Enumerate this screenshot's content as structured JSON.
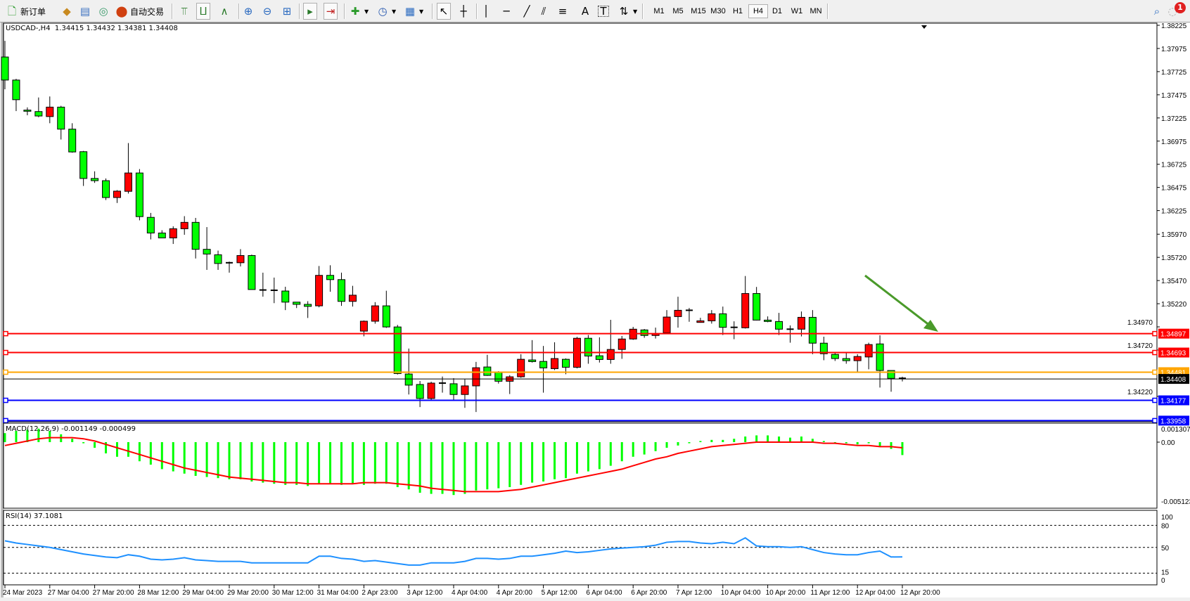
{
  "toolbar": {
    "new_order_label": "新订单",
    "auto_trading_label": "自动交易",
    "icons": [
      "new-order-icon",
      "market-watch-icon",
      "navigator-icon",
      "signals-icon",
      "auto-trading-icon",
      "bar-chart-icon",
      "candlestick-icon",
      "line-chart-icon",
      "zoom-in-icon",
      "zoom-out-icon",
      "tile-windows-icon",
      "auto-scroll-icon",
      "chart-shift-icon",
      "new-chart-icon",
      "periods-icon",
      "templates-icon",
      "cursor-icon",
      "crosshair-icon",
      "vertical-line-icon",
      "horizontal-line-icon",
      "trendline-icon",
      "equidistant-channel-icon",
      "fibonacci-icon",
      "text-icon",
      "text-label-icon",
      "arrows-icon",
      "search-icon",
      "notifications-icon"
    ],
    "timeframes": [
      "M1",
      "M5",
      "M15",
      "M30",
      "H1",
      "H4",
      "D1",
      "W1",
      "MN"
    ],
    "active_timeframe": "H4",
    "notification_count": "1"
  },
  "chart": {
    "title": "USDCAD-,H4  1.34415 1.34432 1.34381 1.34408",
    "macd_title": "MACD(12,26,9) -0.001149 -0.000499",
    "rsi_title": "RSI(14) 37.1081"
  },
  "chart_data": {
    "type": "candlestick",
    "symbol": "USDCAD-",
    "timeframe": "H4",
    "bull_color": "#ff0000",
    "bear_color": "#00ff00",
    "price_ylim": [
      1.33958,
      1.38225
    ],
    "price_ticks": [
      "1.38225",
      "1.37975",
      "1.37725",
      "1.37475",
      "1.37225",
      "1.36975",
      "1.36725",
      "1.36475",
      "1.36225",
      "1.35970",
      "1.35720",
      "1.35470",
      "1.35220",
      "1.34970",
      "1.34720",
      "1.34220"
    ],
    "x_tick_labels": [
      "24 Mar 2023",
      "27 Mar 04:00",
      "27 Mar 20:00",
      "28 Mar 12:00",
      "29 Mar 04:00",
      "29 Mar 20:00",
      "30 Mar 12:00",
      "31 Mar 04:00",
      "2 Apr 23:00",
      "3 Apr 12:00",
      "4 Apr 04:00",
      "4 Apr 20:00",
      "5 Apr 12:00",
      "6 Apr 04:00",
      "6 Apr 20:00",
      "7 Apr 12:00",
      "10 Apr 04:00",
      "10 Apr 20:00",
      "11 Apr 12:00",
      "12 Apr 04:00",
      "12 Apr 20:00"
    ],
    "candles_ohlc": [
      [
        1.37883,
        1.38057,
        1.37535,
        1.37634
      ],
      [
        1.37634,
        1.37647,
        1.37299,
        1.37422
      ],
      [
        1.3731,
        1.37339,
        1.37254,
        1.37297
      ],
      [
        1.37294,
        1.37446,
        1.37233,
        1.37246
      ],
      [
        1.3724,
        1.37457,
        1.37168,
        1.37342
      ],
      [
        1.37342,
        1.37356,
        1.36992,
        1.37104
      ],
      [
        1.37104,
        1.37168,
        1.3685,
        1.36858
      ],
      [
        1.36861,
        1.36869,
        1.36491,
        1.36572
      ],
      [
        1.36572,
        1.36649,
        1.36524,
        1.36548
      ],
      [
        1.36548,
        1.36572,
        1.36339,
        1.36366
      ],
      [
        1.36366,
        1.36446,
        1.36307,
        1.36435
      ],
      [
        1.36433,
        1.36954,
        1.36409,
        1.36631
      ],
      [
        1.36631,
        1.36673,
        1.3612,
        1.3616
      ],
      [
        1.36152,
        1.362,
        1.35914,
        1.35983
      ],
      [
        1.35983,
        1.36013,
        1.3593,
        1.3593
      ],
      [
        1.3593,
        1.36055,
        1.35865,
        1.36029
      ],
      [
        1.36029,
        1.36165,
        1.35964,
        1.36098
      ],
      [
        1.36098,
        1.36146,
        1.35708,
        1.35807
      ],
      [
        1.35807,
        1.36047,
        1.35585,
        1.35756
      ],
      [
        1.35748,
        1.35793,
        1.35585,
        1.35654
      ],
      [
        1.35662,
        1.35675,
        1.35555,
        1.35655
      ],
      [
        1.35662,
        1.35809,
        1.35622,
        1.3574
      ],
      [
        1.3574,
        1.3575,
        1.35373,
        1.35373
      ],
      [
        1.35368,
        1.35555,
        1.35296,
        1.35362
      ],
      [
        1.35365,
        1.35502,
        1.35226,
        1.35354
      ],
      [
        1.35357,
        1.35403,
        1.35151,
        1.35237
      ],
      [
        1.35237,
        1.35237,
        1.35173,
        1.35213
      ],
      [
        1.35213,
        1.35247,
        1.35066,
        1.35191
      ],
      [
        1.35197,
        1.35627,
        1.35181,
        1.35526
      ],
      [
        1.35526,
        1.35635,
        1.35349,
        1.3548
      ],
      [
        1.3548,
        1.35555,
        1.35197,
        1.35245
      ],
      [
        1.35245,
        1.35413,
        1.35189,
        1.35312
      ],
      [
        1.34924,
        1.35039,
        1.34868,
        1.35031
      ],
      [
        1.35031,
        1.35237,
        1.35004,
        1.35197
      ],
      [
        1.35197,
        1.3536,
        1.34959,
        1.34969
      ],
      [
        1.34969,
        1.34991,
        1.34456,
        1.34466
      ],
      [
        1.34461,
        1.34736,
        1.3424,
        1.34341
      ],
      [
        1.34348,
        1.34386,
        1.34104,
        1.34197
      ],
      [
        1.34197,
        1.34378,
        1.34182,
        1.34363
      ],
      [
        1.34363,
        1.34434,
        1.3426,
        1.34358
      ],
      [
        1.34356,
        1.34416,
        1.34185,
        1.3424
      ],
      [
        1.3424,
        1.34404,
        1.34096,
        1.34333
      ],
      [
        1.34333,
        1.34592,
        1.34051,
        1.34529
      ],
      [
        1.34537,
        1.34668,
        1.34441,
        1.34446
      ],
      [
        1.34479,
        1.34492,
        1.34358,
        1.34383
      ],
      [
        1.34383,
        1.34449,
        1.34245,
        1.34431
      ],
      [
        1.34431,
        1.34675,
        1.3442,
        1.3462
      ],
      [
        1.34613,
        1.34827,
        1.34585,
        1.34595
      ],
      [
        1.34597,
        1.34764,
        1.3426,
        1.34527
      ],
      [
        1.34519,
        1.34804,
        1.34504,
        1.34628
      ],
      [
        1.3462,
        1.3463,
        1.34459,
        1.34534
      ],
      [
        1.34534,
        1.34862,
        1.34522,
        1.34847
      ],
      [
        1.34847,
        1.34882,
        1.34572,
        1.34655
      ],
      [
        1.34658,
        1.34857,
        1.34585,
        1.34618
      ],
      [
        1.34618,
        1.35046,
        1.34572,
        1.34726
      ],
      [
        1.34726,
        1.34872,
        1.34625,
        1.34839
      ],
      [
        1.34839,
        1.3497,
        1.3483,
        1.34945
      ],
      [
        1.34937,
        1.34947,
        1.34852,
        1.34877
      ],
      [
        1.34877,
        1.34962,
        1.34844,
        1.34894
      ],
      [
        1.34905,
        1.35151,
        1.349,
        1.35076
      ],
      [
        1.35081,
        1.35295,
        1.34962,
        1.35149
      ],
      [
        1.35149,
        1.35174,
        1.35025,
        1.35139
      ],
      [
        1.35018,
        1.35068,
        1.35015,
        1.35035
      ],
      [
        1.35035,
        1.35151,
        1.35005,
        1.35111
      ],
      [
        1.35111,
        1.35189,
        1.34882,
        1.34965
      ],
      [
        1.34965,
        1.3503,
        1.34837,
        1.34958
      ],
      [
        1.3496,
        1.35519,
        1.34952,
        1.3533
      ],
      [
        1.3533,
        1.35401,
        1.3504,
        1.35043
      ],
      [
        1.35043,
        1.35083,
        1.3502,
        1.35028
      ],
      [
        1.35028,
        1.35121,
        1.34882,
        1.34945
      ],
      [
        1.34945,
        1.34985,
        1.34799,
        1.34942
      ],
      [
        1.34945,
        1.35136,
        1.34867,
        1.35073
      ],
      [
        1.35073,
        1.35151,
        1.34675,
        1.34794
      ],
      [
        1.34794,
        1.34864,
        1.3461,
        1.3468
      ],
      [
        1.34673,
        1.34686,
        1.34602,
        1.34628
      ],
      [
        1.34628,
        1.34686,
        1.34572,
        1.34605
      ],
      [
        1.34605,
        1.34675,
        1.34487,
        1.3465
      ],
      [
        1.34645,
        1.34799,
        1.34512,
        1.34779
      ],
      [
        1.34786,
        1.34879,
        1.34315,
        1.34499
      ],
      [
        1.34499,
        1.34499,
        1.3427,
        1.34414
      ],
      [
        1.34415,
        1.34432,
        1.34381,
        1.34408
      ]
    ],
    "horizontal_lines": [
      {
        "price": "1.34897",
        "color": "#ff0000"
      },
      {
        "price": "1.34693",
        "color": "#ff0000"
      },
      {
        "price": "1.34481",
        "color": "#ffa500"
      },
      {
        "price": "1.34408",
        "color": "#000000"
      },
      {
        "price": "1.34177",
        "color": "#0000ff"
      },
      {
        "price": "1.33958",
        "color": "#0000ff"
      }
    ],
    "annotation_arrow_color": "#4a9a2a",
    "macd": {
      "ylim": [
        -0.005123,
        0.001307
      ],
      "ticks": [
        "0.001307",
        "0.00",
        "-0.005123"
      ],
      "histogram_color": "#00ff00",
      "signal_color": "#ff0000",
      "histogram": [
        0.0008,
        0.001,
        0.0011,
        0.0012,
        0.001,
        0.0007,
        0.0003,
        -0.0001,
        -0.0005,
        -0.001,
        -0.0013,
        -0.0013,
        -0.0017,
        -0.002,
        -0.0024,
        -0.0026,
        -0.0028,
        -0.003,
        -0.0031,
        -0.0032,
        -0.0033,
        -0.0033,
        -0.0035,
        -0.0036,
        -0.0037,
        -0.0038,
        -0.0038,
        -0.0039,
        -0.0037,
        -0.0037,
        -0.0038,
        -0.0037,
        -0.0038,
        -0.0037,
        -0.0037,
        -0.004,
        -0.0042,
        -0.0045,
        -0.0046,
        -0.0046,
        -0.0047,
        -0.0046,
        -0.0043,
        -0.0042,
        -0.0041,
        -0.004,
        -0.0038,
        -0.0036,
        -0.0035,
        -0.0033,
        -0.0032,
        -0.0028,
        -0.0026,
        -0.0024,
        -0.0021,
        -0.0017,
        -0.0013,
        -0.0011,
        -0.0008,
        -0.0005,
        -0.0003,
        -0.0001,
        0.0001,
        0.0002,
        0.0002,
        0.0003,
        0.0005,
        0.0006,
        0.0006,
        0.0005,
        0.0004,
        0.0005,
        0.0003,
        0.0001,
        0.0,
        -0.0001,
        -0.0002,
        -0.0001,
        -0.0004,
        -0.0006,
        -0.001149
      ],
      "signal": [
        -0.0003,
        -0.0001,
        0.0001,
        0.0003,
        0.0004,
        0.0004,
        0.0004,
        0.0003,
        0.0001,
        -0.0002,
        -0.0005,
        -0.0008,
        -0.0011,
        -0.0014,
        -0.0017,
        -0.002,
        -0.0023,
        -0.0025,
        -0.0027,
        -0.0029,
        -0.0031,
        -0.0032,
        -0.0033,
        -0.0034,
        -0.0035,
        -0.0036,
        -0.0036,
        -0.0037,
        -0.0037,
        -0.0037,
        -0.0037,
        -0.0037,
        -0.0036,
        -0.0036,
        -0.0036,
        -0.0037,
        -0.0038,
        -0.0039,
        -0.0041,
        -0.0042,
        -0.0043,
        -0.0044,
        -0.0044,
        -0.0044,
        -0.0044,
        -0.0043,
        -0.0042,
        -0.004,
        -0.0038,
        -0.0036,
        -0.0034,
        -0.0032,
        -0.003,
        -0.0028,
        -0.0026,
        -0.0024,
        -0.0021,
        -0.0018,
        -0.0015,
        -0.0013,
        -0.001,
        -0.0008,
        -0.0006,
        -0.0004,
        -0.0003,
        -0.0002,
        -0.0001,
        0.0,
        0.0,
        0.0,
        0.0,
        0.0,
        0.0,
        -0.0001,
        -0.0001,
        -0.0002,
        -0.0003,
        -0.0003,
        -0.0004,
        -0.0004,
        -0.000499
      ]
    },
    "rsi": {
      "ylim": [
        0,
        100
      ],
      "levels": [
        "100",
        "80",
        "50",
        "15",
        "0"
      ],
      "dashed_levels": [
        80,
        50,
        15
      ],
      "color": "#1e90ff",
      "values": [
        59,
        56,
        54,
        52,
        50,
        47,
        44,
        41,
        39,
        37,
        36,
        40,
        38,
        34,
        33,
        34,
        36,
        33,
        32,
        31,
        31,
        31,
        29,
        29,
        29,
        29,
        29,
        29,
        38,
        38,
        35,
        34,
        31,
        32,
        30,
        28,
        26,
        26,
        29,
        29,
        29,
        31,
        35,
        35,
        34,
        35,
        38,
        38,
        40,
        42,
        45,
        43,
        44,
        46,
        48,
        49,
        50,
        51,
        53,
        57,
        58,
        58,
        56,
        55,
        57,
        55,
        63,
        52,
        51,
        51,
        50,
        51,
        47,
        43,
        41,
        40,
        40,
        43,
        45,
        37,
        37.1081
      ]
    }
  }
}
